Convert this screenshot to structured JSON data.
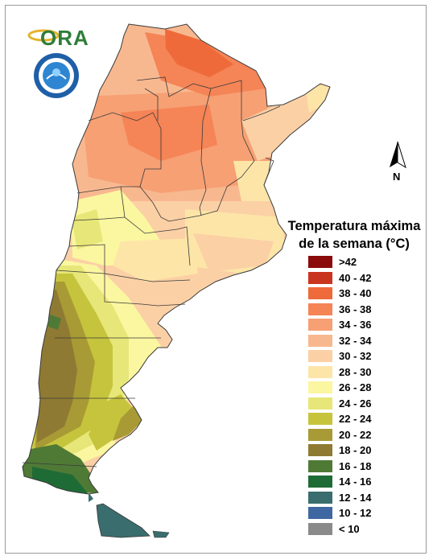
{
  "logo": {
    "text": "ORA"
  },
  "seal": {
    "name": "servicio-meteorologico-nacional-seal"
  },
  "north_arrow": {
    "label": "N"
  },
  "legend": {
    "title_line1": "Temperatura máxima",
    "title_line2": "de la semana (°C)",
    "items": [
      {
        "label": ">42",
        "color": "#8b0a0a"
      },
      {
        "label": "40 - 42",
        "color": "#c9341f"
      },
      {
        "label": "38 - 40",
        "color": "#ef6a3a"
      },
      {
        "label": "36 - 38",
        "color": "#f58456"
      },
      {
        "label": "34 - 36",
        "color": "#f6a074"
      },
      {
        "label": "32 - 34",
        "color": "#f8b88f"
      },
      {
        "label": "30 - 32",
        "color": "#fbd0a5"
      },
      {
        "label": "28 - 30",
        "color": "#fde5a8"
      },
      {
        "label": "26 - 28",
        "color": "#fbf6a0"
      },
      {
        "label": "24 - 26",
        "color": "#e7e678"
      },
      {
        "label": "22 - 24",
        "color": "#c6c43c"
      },
      {
        "label": "20 - 22",
        "color": "#a89a35"
      },
      {
        "label": "18 - 20",
        "color": "#8f7a33"
      },
      {
        "label": "16 - 18",
        "color": "#4f7a36"
      },
      {
        "label": "14 - 16",
        "color": "#1f6b36"
      },
      {
        "label": "12 - 14",
        "color": "#3a6d6e"
      },
      {
        "label": "10 - 12",
        "color": "#3f67a1"
      },
      {
        "label": "< 10",
        "color": "#8a8a8a"
      }
    ]
  }
}
